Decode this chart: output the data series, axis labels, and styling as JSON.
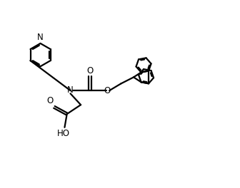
{
  "bg_color": "#ffffff",
  "line_color": "#000000",
  "line_width": 1.6,
  "figsize": [
    3.36,
    2.64
  ],
  "dpi": 100,
  "xlim": [
    0,
    10
  ],
  "ylim": [
    0,
    8
  ]
}
